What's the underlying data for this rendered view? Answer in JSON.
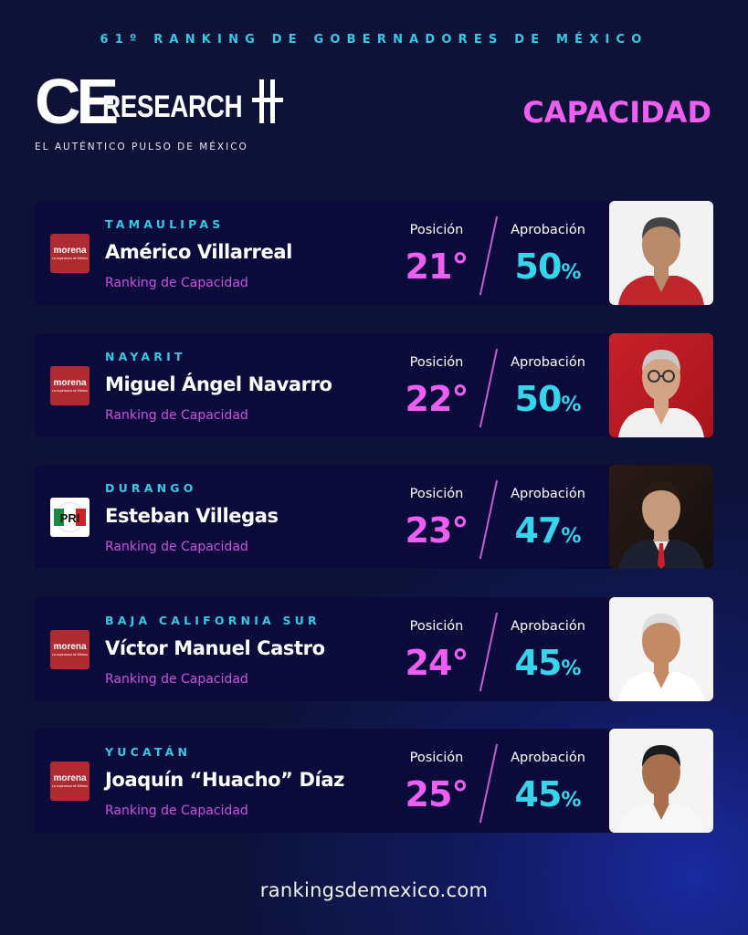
{
  "header": {
    "title": "61º RANKING DE GOBERNADORES DE MÉXICO",
    "logo_ce": "CE",
    "logo_research": "RESEARCH",
    "tagline": "EL AUTÉNTICO PULSO DE MÉXICO",
    "category": "CAPACIDAD"
  },
  "labels": {
    "position": "Posición",
    "approval": "Aprobación",
    "subtitle": "Ranking de Capacidad",
    "percent": "%"
  },
  "party_logos": {
    "morena_name": "morena",
    "morena_tagline": "La esperanza de México",
    "pri_name": "PRI"
  },
  "governors": [
    {
      "state": "TAMAULIPAS",
      "name": "Américo Villarreal",
      "party": "morena",
      "position": "21°",
      "approval": "50"
    },
    {
      "state": "NAYARIT",
      "name": "Miguel Ángel Navarro",
      "party": "morena",
      "position": "22°",
      "approval": "50"
    },
    {
      "state": "DURANGO",
      "name": "Esteban Villegas",
      "party": "pri",
      "position": "23°",
      "approval": "47"
    },
    {
      "state": "BAJA CALIFORNIA SUR",
      "name": "Víctor Manuel Castro",
      "party": "morena",
      "position": "24°",
      "approval": "45"
    },
    {
      "state": "YUCATÁN",
      "name": "Joaquín “Huacho” Díaz",
      "party": "morena",
      "position": "25°",
      "approval": "45"
    }
  ],
  "footer": {
    "url": "rankingsdemexico.com"
  },
  "colors": {
    "background": "#0d1236",
    "card": "#0a0b3a",
    "cyan": "#35c9e6",
    "magenta": "#ef5ef2",
    "morena": "#b02a31"
  }
}
